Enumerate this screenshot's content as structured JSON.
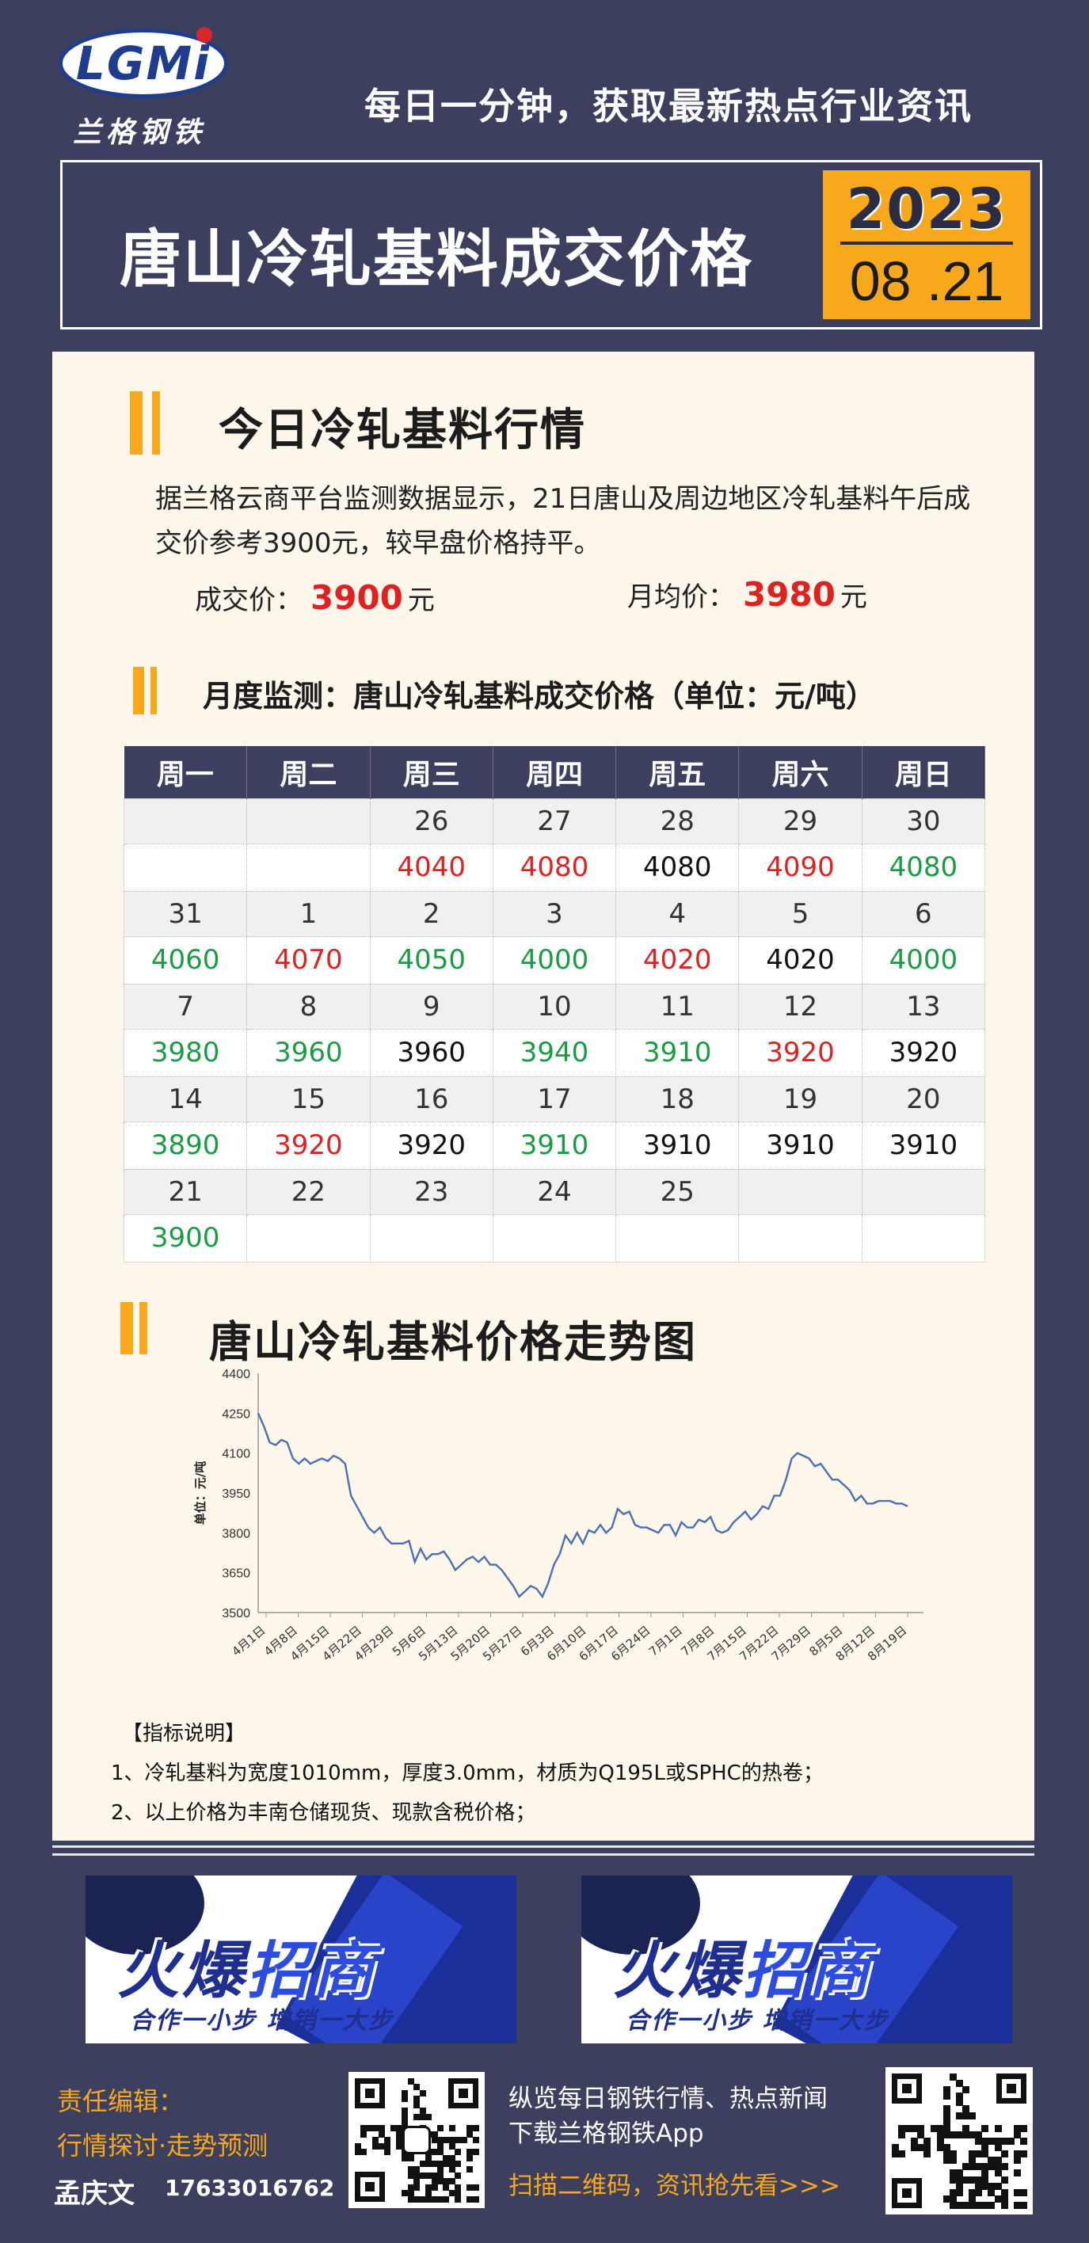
{
  "header": {
    "logo_text": "LGMi",
    "logo_cn": "兰格钢铁",
    "slogan": "每日一分钟，获取最新热点行业资讯",
    "title": "唐山冷轧基料成交价格",
    "year": "2023",
    "month_day": "08 .21"
  },
  "today": {
    "heading": "今日冷轧基料行情",
    "paragraph": "据兰格云商平台监测数据显示，21日唐山及周边地区冷轧基料午后成交价参考3900元，较早盘价格持平。",
    "deal_label": "成交价：",
    "deal_value": "3900",
    "deal_unit": "元",
    "avg_label": "月均价：",
    "avg_value": "3980",
    "avg_unit": "元"
  },
  "monthly": {
    "heading": "月度监测：唐山冷轧基料成交价格（单位：元/吨）",
    "weekdays": [
      "周一",
      "周二",
      "周三",
      "周四",
      "周五",
      "周六",
      "周日"
    ],
    "weeks": [
      {
        "dates": [
          "",
          "",
          "26",
          "27",
          "28",
          "29",
          "30"
        ],
        "prices": [
          "",
          "",
          "4040",
          "4080",
          "4080",
          "4090",
          "4080"
        ],
        "trend": [
          "",
          "",
          "up",
          "up",
          "flat",
          "up",
          "down"
        ]
      },
      {
        "dates": [
          "31",
          "1",
          "2",
          "3",
          "4",
          "5",
          "6"
        ],
        "prices": [
          "4060",
          "4070",
          "4050",
          "4000",
          "4020",
          "4020",
          "4000"
        ],
        "trend": [
          "down",
          "up",
          "down",
          "down",
          "up",
          "flat",
          "down"
        ]
      },
      {
        "dates": [
          "7",
          "8",
          "9",
          "10",
          "11",
          "12",
          "13"
        ],
        "prices": [
          "3980",
          "3960",
          "3960",
          "3940",
          "3910",
          "3920",
          "3920"
        ],
        "trend": [
          "down",
          "down",
          "flat",
          "down",
          "down",
          "up",
          "flat"
        ]
      },
      {
        "dates": [
          "14",
          "15",
          "16",
          "17",
          "18",
          "19",
          "20"
        ],
        "prices": [
          "3890",
          "3920",
          "3920",
          "3910",
          "3910",
          "3910",
          "3910"
        ],
        "trend": [
          "down",
          "up",
          "flat",
          "down",
          "flat",
          "flat",
          "flat"
        ]
      },
      {
        "dates": [
          "21",
          "22",
          "23",
          "24",
          "25",
          "",
          ""
        ],
        "prices": [
          "3900",
          "",
          "",
          "",
          "",
          "",
          ""
        ],
        "trend": [
          "down",
          "",
          "",
          "",
          "",
          "",
          ""
        ]
      }
    ]
  },
  "trend": {
    "heading": "唐山冷轧基料价格走势图"
  },
  "chart_data": {
    "type": "line",
    "title": "",
    "xlabel": "",
    "ylabel": "单位：元/吨",
    "ylim": [
      3500,
      4400
    ],
    "yticks": [
      3500,
      3650,
      3800,
      3950,
      4100,
      4250,
      4400
    ],
    "xticks": [
      "4月1日",
      "4月8日",
      "4月15日",
      "4月22日",
      "4月29日",
      "5月6日",
      "5月13日",
      "5月20日",
      "5月27日",
      "6月3日",
      "6月10日",
      "6月17日",
      "6月24日",
      "7月1日",
      "7月8日",
      "7月15日",
      "7月22日",
      "7月29日",
      "8月5日",
      "8月12日",
      "8月19日"
    ],
    "grid": false,
    "line_color": "#4a6fb5",
    "series": [
      {
        "values": [
          4250,
          4200,
          4140,
          4130,
          4150,
          4140,
          4080,
          4060,
          4080,
          4060,
          4070,
          4080,
          4070,
          4090,
          4080,
          4060,
          3940,
          3900,
          3860,
          3820,
          3800,
          3820,
          3780,
          3760,
          3760,
          3760,
          3770,
          3690,
          3740,
          3700,
          3720,
          3720,
          3730,
          3700,
          3660,
          3680,
          3700,
          3710,
          3690,
          3710,
          3680,
          3680,
          3660,
          3630,
          3600,
          3560,
          3580,
          3600,
          3590,
          3560,
          3610,
          3680,
          3720,
          3790,
          3760,
          3800,
          3760,
          3810,
          3800,
          3830,
          3800,
          3820,
          3890,
          3870,
          3880,
          3830,
          3820,
          3820,
          3810,
          3800,
          3830,
          3830,
          3790,
          3840,
          3820,
          3820,
          3850,
          3840,
          3860,
          3810,
          3800,
          3810,
          3840,
          3860,
          3880,
          3850,
          3870,
          3900,
          3890,
          3940,
          3940,
          4000,
          4080,
          4100,
          4090,
          4080,
          4050,
          4060,
          4030,
          4000,
          4000,
          3980,
          3960,
          3920,
          3940,
          3910,
          3910,
          3920,
          3920,
          3920,
          3910,
          3910,
          3900
        ]
      }
    ]
  },
  "notes": {
    "title": "【指标说明】",
    "items": [
      "1、冷轧基料为宽度1010mm，厚度3.0mm，材质为Q195L或SPHC的热卷；",
      "2、以上价格为丰南仓储现货、现款含税价格；"
    ]
  },
  "banners": [
    {
      "big_a": "火爆",
      "big_b": "招商",
      "sub": "合作一小步 增销一大步"
    },
    {
      "big_a": "火爆",
      "big_b": "招商",
      "sub": "合作一小步 增销一大步"
    }
  ],
  "footer": {
    "editor_label": "责任编辑：",
    "editor_topic": "行情探讨·走势预测",
    "editor_name": "孟庆文",
    "editor_phone": "17633016762",
    "app_line1": "纵览每日钢铁行情、热点新闻",
    "app_line2": "下载兰格钢铁App",
    "app_line3": "扫描二维码，资讯抢先看>>>"
  },
  "colors": {
    "background": "#3d3f5f",
    "accent": "#f7a81b",
    "up": "#e0211f",
    "down": "#1a9c45",
    "card": "#fdf6ea"
  }
}
